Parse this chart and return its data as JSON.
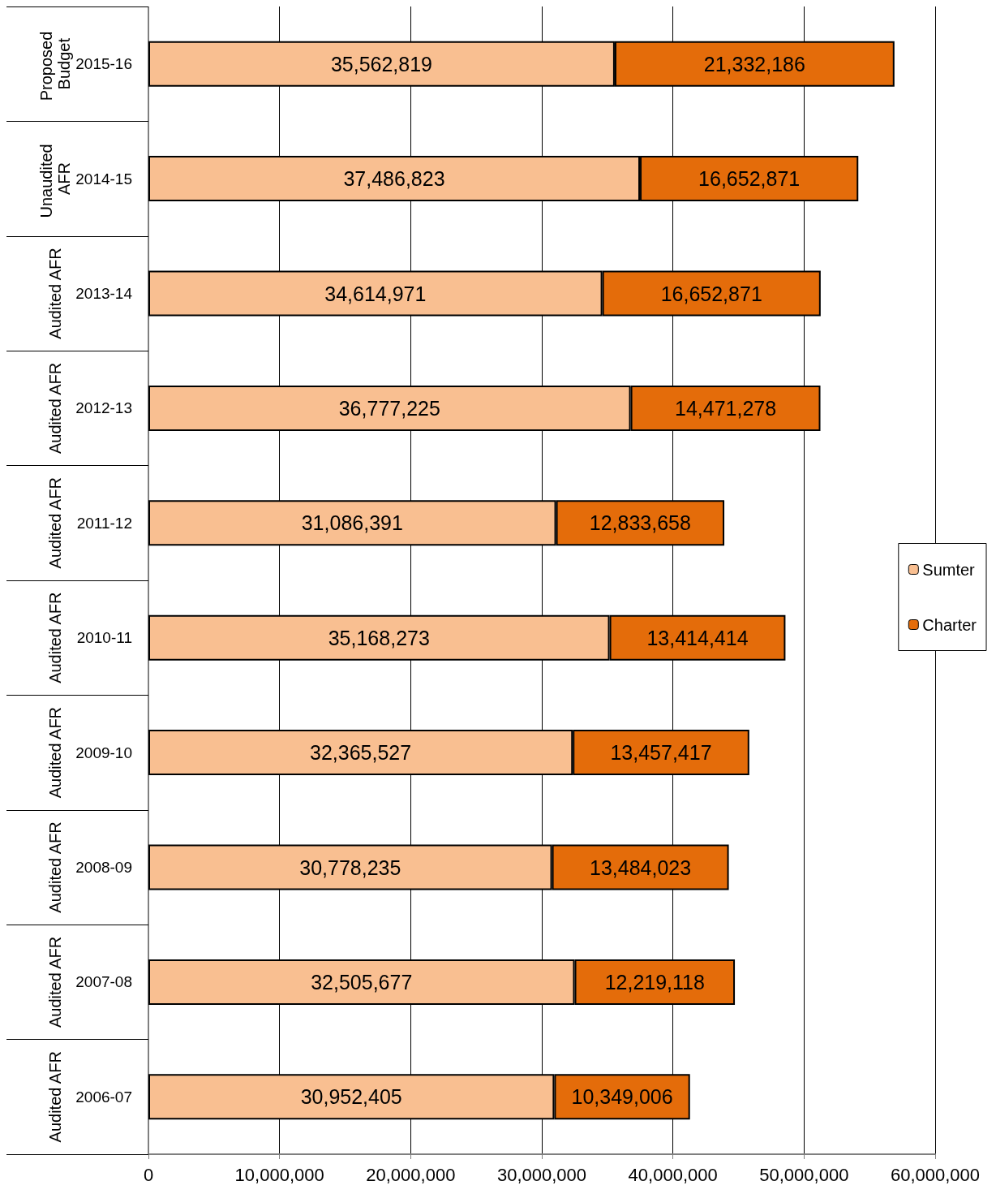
{
  "chart_data": {
    "type": "bar",
    "orientation": "horizontal",
    "stacked": true,
    "categories": [
      "2015-16",
      "2014-15",
      "2013-14",
      "2012-13",
      "2011-12",
      "2010-11",
      "2009-10",
      "2008-09",
      "2007-08",
      "2006-07"
    ],
    "series": [
      {
        "name": "Sumter",
        "color": "#f9bf91",
        "values": [
          35562819,
          37486823,
          34614971,
          36777225,
          31086391,
          35168273,
          32365527,
          30778235,
          32505677,
          30952405
        ],
        "value_labels": [
          "35,562,819",
          "37,486,823",
          "34,614,971",
          "36,777,225",
          "31,086,391",
          "35,168,273",
          "32,365,527",
          "30,778,235",
          "32,505,677",
          "30,952,405"
        ]
      },
      {
        "name": "Charter",
        "color": "#e46c0a",
        "values": [
          21332186,
          16652871,
          16652871,
          14471278,
          12833658,
          13414414,
          13457417,
          13484023,
          12219118,
          10349006
        ],
        "value_labels": [
          "21,332,186",
          "16,652,871",
          "16,652,871",
          "14,471,278",
          "12,833,658",
          "13,414,414",
          "13,457,417",
          "13,484,023",
          "12,219,118",
          "10,349,006"
        ]
      }
    ],
    "xlim": [
      0,
      60000000
    ],
    "xticks": [
      0,
      {
        "value": 10000000,
        "label": "10,000,000"
      },
      {
        "value": 20000000,
        "label": "20,000,000"
      },
      {
        "value": 30000000,
        "label": "30,000,000"
      },
      {
        "value": 40000000,
        "label": "40,000,000"
      },
      {
        "value": 50000000,
        "label": "50,000,000"
      },
      {
        "value": 60000000,
        "label": "60,000,000"
      }
    ],
    "annotations": [
      "Proposed Budget",
      "Unaudited AFR",
      "Audited AFR",
      "Audited AFR",
      "Audited AFR",
      "Audited AFR",
      "Audited AFR",
      "Audited AFR",
      "Audited AFR",
      "Audited AFR"
    ],
    "grid": "x",
    "legend": "right"
  }
}
